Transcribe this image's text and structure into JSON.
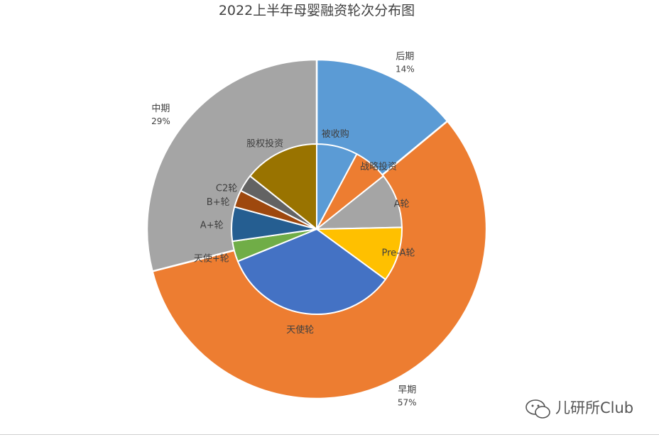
{
  "chart_data": {
    "type": "pie",
    "title": "2022上半年母婴融资轮次分布图",
    "outer_ring": {
      "categories": [
        "后期",
        "早期",
        "中期"
      ],
      "values": [
        14,
        57,
        29
      ],
      "labels": [
        "14%",
        "57%",
        "29%"
      ],
      "colors": [
        "#5B9BD5",
        "#ED7D31",
        "#A5A5A5"
      ]
    },
    "inner_ring": {
      "categories": [
        "被收购",
        "战略投资",
        "A轮",
        "Pre-A轮",
        "天使轮",
        "天使+轮",
        "A+轮",
        "B+轮",
        "C2轮",
        "股权投资"
      ],
      "values": [
        6,
        5,
        8,
        8,
        26,
        3,
        5,
        2.5,
        2.5,
        11
      ],
      "colors": [
        "#5B9BD5",
        "#ED7D31",
        "#A5A5A5",
        "#FFC000",
        "#4472C4",
        "#70AD47",
        "#255E91",
        "#9E480E",
        "#636363",
        "#997300"
      ]
    }
  },
  "watermark": {
    "text": "儿研所Club",
    "icon": "wechat-icon"
  }
}
